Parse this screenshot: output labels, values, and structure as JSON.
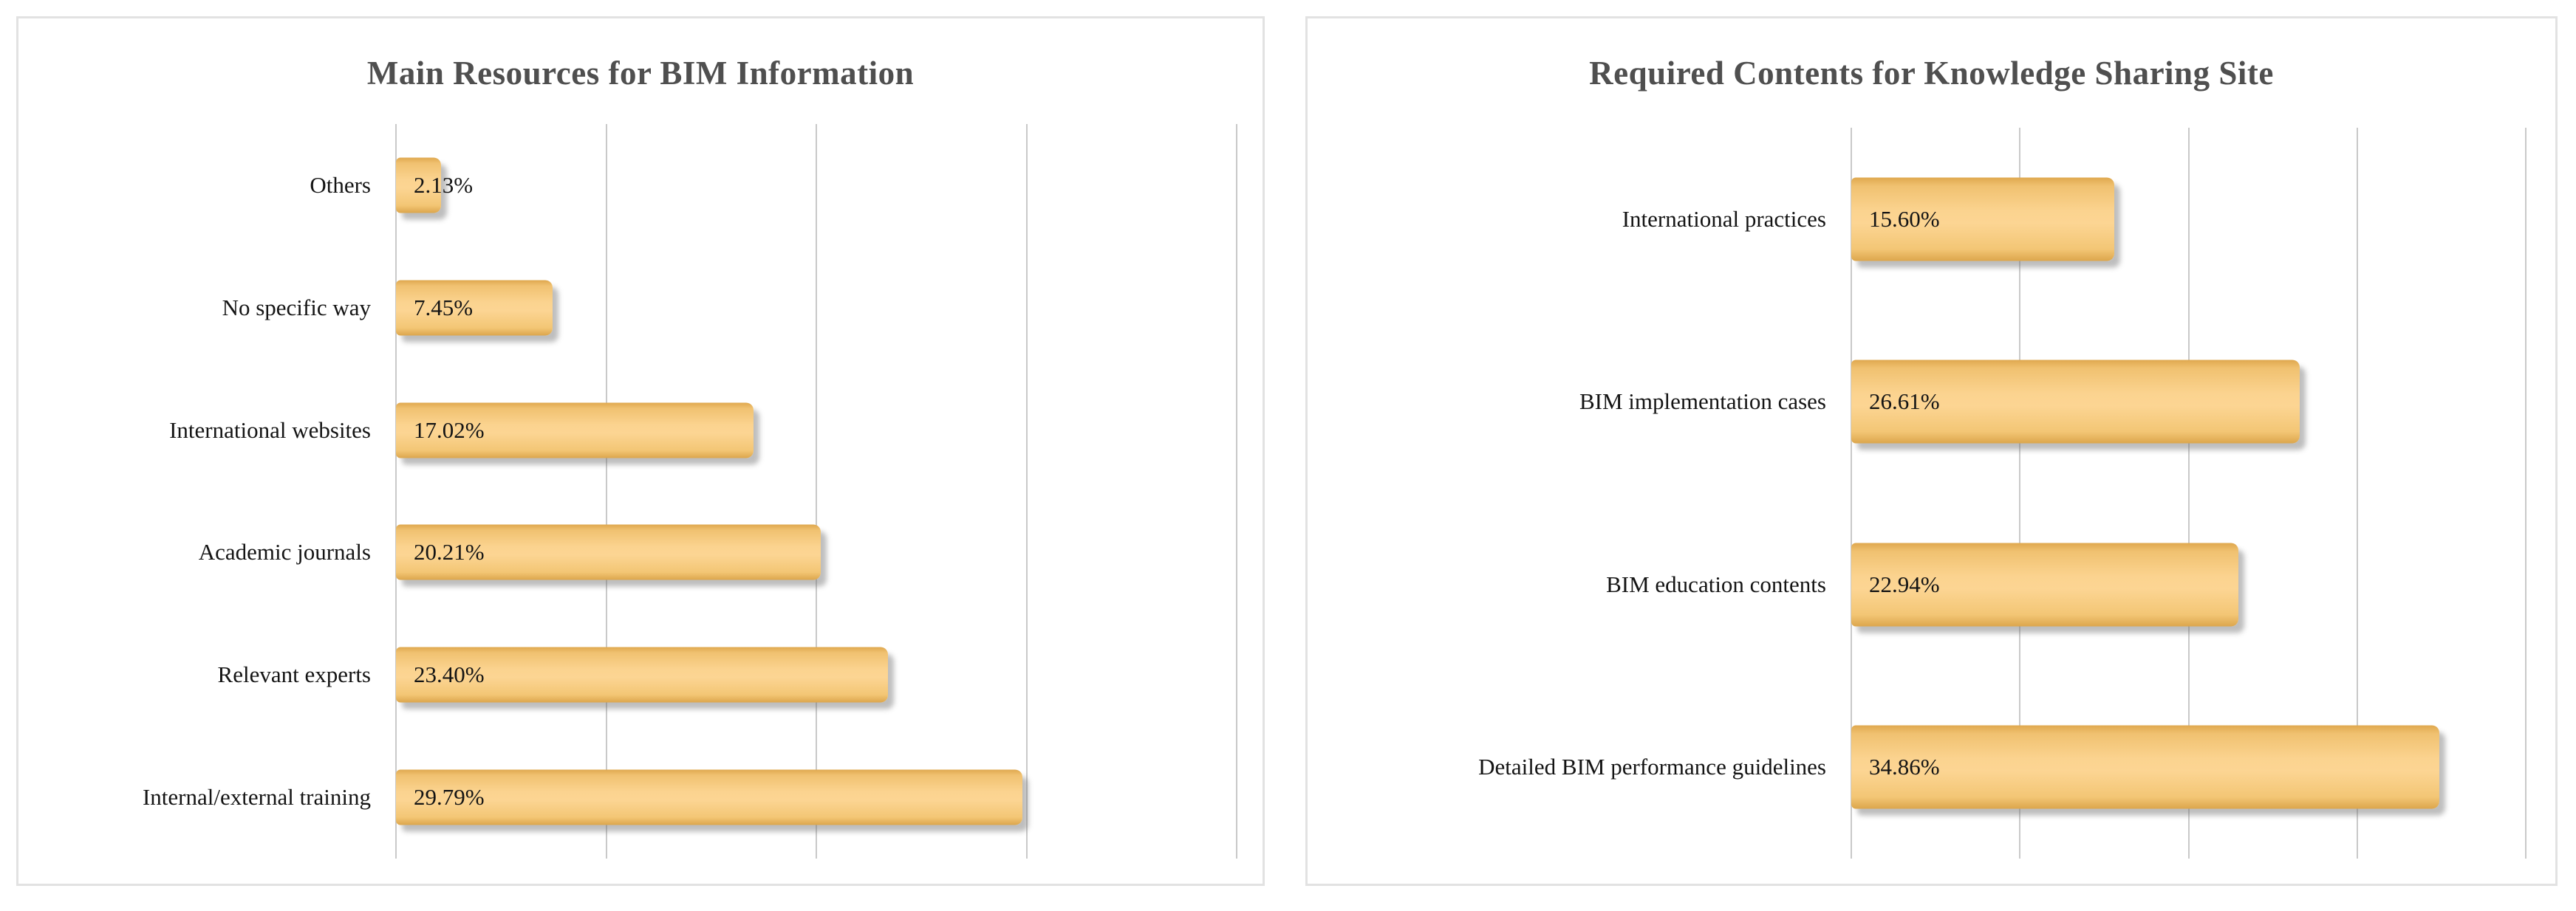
{
  "page": {
    "background": "#ffffff",
    "panel_border_color": "#e2e2e2"
  },
  "chart_data": [
    {
      "type": "bar",
      "orientation": "horizontal",
      "title": "Main Resources for BIM Information",
      "categories": [
        "Others",
        "No specific way",
        "International websites",
        "Academic journals",
        "Relevant experts",
        "Internal/external training"
      ],
      "values": [
        2.13,
        7.45,
        17.02,
        20.21,
        23.4,
        29.79
      ],
      "value_labels": [
        "2.13%",
        "7.45%",
        "17.02%",
        "20.21%",
        "23.40%",
        "29.79%"
      ],
      "xlim": [
        0,
        40
      ],
      "gridlines_percent": [
        0,
        10,
        20,
        30,
        40
      ],
      "grid_on": true,
      "legend_position": "none",
      "axis_tick_labels_visible": false,
      "bar_fill": "#FBD38F",
      "bar_fill_edge": "#DCA64C",
      "gridline_color": "#c9c9c9",
      "title_color": "#4f4f4f",
      "text_color": "#141414"
    },
    {
      "type": "bar",
      "orientation": "horizontal",
      "title": "Required Contents for Knowledge Sharing Site",
      "categories": [
        "International practices",
        "BIM implementation cases",
        "BIM education contents",
        "Detailed BIM performance guidelines"
      ],
      "values": [
        15.6,
        26.61,
        22.94,
        34.86
      ],
      "value_labels": [
        "15.60%",
        "26.61%",
        "22.94%",
        "34.86%"
      ],
      "xlim": [
        0,
        40
      ],
      "gridlines_percent": [
        0,
        10,
        20,
        30,
        40
      ],
      "grid_on": true,
      "legend_position": "none",
      "axis_tick_labels_visible": false,
      "bar_fill": "#FBD38F",
      "bar_fill_edge": "#DCA64C",
      "gridline_color": "#c9c9c9",
      "title_color": "#4f4f4f",
      "text_color": "#141414"
    }
  ]
}
